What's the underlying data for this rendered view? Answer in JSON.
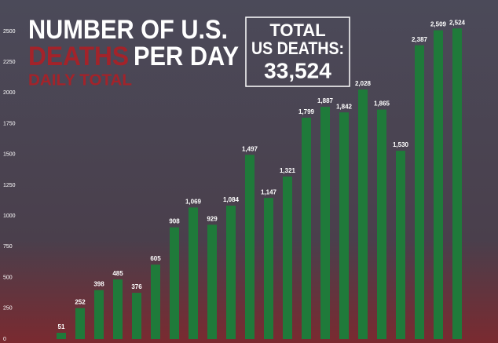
{
  "chart_data": {
    "type": "bar",
    "title": "NUMBER OF U.S.",
    "title_highlight": "DEATHS",
    "title_rest": "PER DAY",
    "subtitle": "DAILY TOTAL",
    "total_box": {
      "lines": [
        "TOTAL",
        "US DEATHS:"
      ],
      "value": "33,524"
    },
    "values": [
      51,
      252,
      398,
      485,
      376,
      605,
      908,
      1069,
      929,
      1084,
      1497,
      1147,
      1321,
      1799,
      1887,
      1842,
      2028,
      1865,
      1530,
      2387,
      2509,
      2524
    ],
    "value_labels": [
      "51",
      "252",
      "398",
      "485",
      "376",
      "605",
      "908",
      "1,069",
      "929",
      "1,084",
      "1,497",
      "1,147",
      "1,321",
      "1,799",
      "1,887",
      "1,842",
      "2,028",
      "1,865",
      "1,530",
      "2,387",
      "2,509",
      "2,524"
    ],
    "color": "#1f7a3a",
    "ylim": [
      0,
      2500
    ],
    "yticks": [
      0,
      250,
      500,
      750,
      1000,
      1250,
      1500,
      1750,
      2000,
      2250,
      2500
    ],
    "grid": false
  }
}
